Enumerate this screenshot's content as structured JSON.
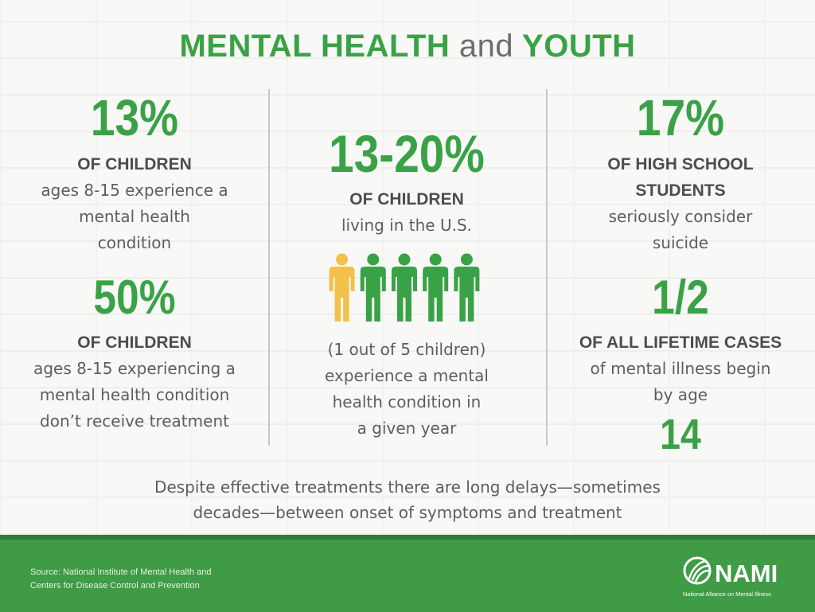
{
  "title": {
    "part1": "MENTAL HEALTH",
    "part2": "and",
    "part3": "YOUTH"
  },
  "stats": {
    "s13": {
      "value": "13%",
      "head": "OF CHILDREN",
      "lines": [
        "ages 8-15 experience a",
        "mental health",
        "condition"
      ]
    },
    "s50": {
      "value": "50%",
      "head": "OF CHILDREN",
      "lines": [
        "ages 8-15 experiencing a",
        "mental health condition",
        "don’t receive treatment"
      ]
    },
    "s1320": {
      "value": "13-20%",
      "head": "OF CHILDREN",
      "lines": [
        "living in the U.S."
      ]
    },
    "ratio": {
      "lines": [
        "(1 out of 5 children)",
        "experience a mental",
        "health condition in",
        "a given year"
      ]
    },
    "s17": {
      "value": "17%",
      "head_lines": [
        "OF HIGH SCHOOL",
        "STUDENTS"
      ],
      "lines": [
        "seriously consider",
        "suicide"
      ]
    },
    "half": {
      "value": "1/2",
      "head": "OF ALL LIFETIME CASES",
      "lines": [
        "of mental illness begin",
        "by age"
      ],
      "age": "14"
    }
  },
  "people_icon": {
    "count": 5,
    "highlighted": 1,
    "highlight_color": "#f2c14a",
    "color": "#3aa246"
  },
  "footer": {
    "lines": [
      "Despite effective treatments there are long delays—sometimes",
      "decades—between onset of symptoms and treatment"
    ]
  },
  "source": {
    "lines": [
      "Source: National Institute of Mental Health and",
      "Centers for Disease Control and Prevention"
    ]
  },
  "logo": {
    "name": "NAMI",
    "tagline": "National Alliance on Mental Illness",
    "icon": "nami-leaf-icon"
  },
  "colors": {
    "accent": "#3aa246",
    "band": "#3f9b46",
    "text": "#5e5e5e"
  }
}
